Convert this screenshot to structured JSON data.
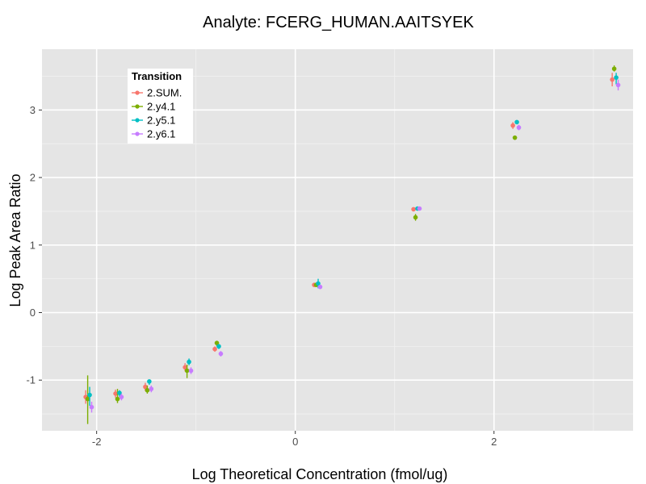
{
  "chart_data": {
    "type": "scatter",
    "title": "Analyte: FCERG_HUMAN.AAITSYEK",
    "xlabel": "Log Theoretical Concentration (fmol/ug)",
    "ylabel": "Log Peak Area Ratio",
    "xlim": [
      -2.55,
      3.4
    ],
    "ylim": [
      -1.75,
      3.9
    ],
    "x_ticks": [
      -2,
      0,
      2
    ],
    "y_ticks": [
      -1,
      0,
      1,
      2,
      3
    ],
    "x_tick_labels": [
      "-2",
      "0",
      "2"
    ],
    "y_tick_labels": [
      "-1",
      "0",
      "1",
      "2",
      "3"
    ],
    "grid": true,
    "legend": {
      "title": "Transition",
      "position": "top-left-inside"
    },
    "series": [
      {
        "name": "2.SUM.",
        "color": "#F8766D",
        "points": [
          {
            "x": -2.11,
            "y": -1.25,
            "lo": -1.35,
            "hi": -1.15
          },
          {
            "x": -1.81,
            "y": -1.2,
            "lo": -1.26,
            "hi": -1.14
          },
          {
            "x": -1.51,
            "y": -1.1,
            "lo": -1.16,
            "hi": -1.04
          },
          {
            "x": -1.11,
            "y": -0.81,
            "lo": -0.87,
            "hi": -0.75
          },
          {
            "x": -0.81,
            "y": -0.54,
            "lo": -0.58,
            "hi": -0.5
          },
          {
            "x": 0.19,
            "y": 0.41,
            "lo": 0.38,
            "hi": 0.44
          },
          {
            "x": 1.19,
            "y": 1.53,
            "lo": 1.51,
            "hi": 1.55
          },
          {
            "x": 2.19,
            "y": 2.77,
            "lo": 2.72,
            "hi": 2.82
          },
          {
            "x": 3.19,
            "y": 3.45,
            "lo": 3.35,
            "hi": 3.55
          }
        ]
      },
      {
        "name": "2.y4.1",
        "color": "#7CAE00",
        "points": [
          {
            "x": -2.09,
            "y": -1.28,
            "lo": -1.65,
            "hi": -0.93
          },
          {
            "x": -1.79,
            "y": -1.28,
            "lo": -1.34,
            "hi": -1.13
          },
          {
            "x": -1.49,
            "y": -1.15,
            "lo": -1.2,
            "hi": -1.08
          },
          {
            "x": -1.09,
            "y": -0.86,
            "lo": -0.97,
            "hi": -0.77
          },
          {
            "x": -0.79,
            "y": -0.45,
            "lo": -0.5,
            "hi": -0.42
          },
          {
            "x": 0.21,
            "y": 0.41,
            "lo": 0.38,
            "hi": 0.44
          },
          {
            "x": 1.21,
            "y": 1.41,
            "lo": 1.36,
            "hi": 1.46
          },
          {
            "x": 2.21,
            "y": 2.59,
            "lo": 2.56,
            "hi": 2.62
          },
          {
            "x": 3.21,
            "y": 3.61,
            "lo": 3.57,
            "hi": 3.66
          }
        ]
      },
      {
        "name": "2.y5.1",
        "color": "#00BFC4",
        "points": [
          {
            "x": -2.07,
            "y": -1.22,
            "lo": -1.38,
            "hi": -1.1
          },
          {
            "x": -1.77,
            "y": -1.19,
            "lo": -1.25,
            "hi": -1.15
          },
          {
            "x": -1.47,
            "y": -1.02,
            "lo": -1.07,
            "hi": -0.99
          },
          {
            "x": -1.07,
            "y": -0.73,
            "lo": -0.78,
            "hi": -0.68
          },
          {
            "x": -0.77,
            "y": -0.5,
            "lo": -0.54,
            "hi": -0.47
          },
          {
            "x": 0.23,
            "y": 0.43,
            "lo": 0.36,
            "hi": 0.5
          },
          {
            "x": 1.23,
            "y": 1.54,
            "lo": 1.52,
            "hi": 1.56
          },
          {
            "x": 2.23,
            "y": 2.82,
            "lo": 2.79,
            "hi": 2.85
          },
          {
            "x": 3.23,
            "y": 3.48,
            "lo": 3.38,
            "hi": 3.55
          }
        ]
      },
      {
        "name": "2.y6.1",
        "color": "#C77CFF",
        "points": [
          {
            "x": -2.05,
            "y": -1.4,
            "lo": -1.48,
            "hi": -1.32
          },
          {
            "x": -1.75,
            "y": -1.25,
            "lo": -1.3,
            "hi": -1.2
          },
          {
            "x": -1.45,
            "y": -1.13,
            "lo": -1.18,
            "hi": -1.08
          },
          {
            "x": -1.05,
            "y": -0.86,
            "lo": -0.91,
            "hi": -0.81
          },
          {
            "x": -0.75,
            "y": -0.61,
            "lo": -0.65,
            "hi": -0.57
          },
          {
            "x": 0.25,
            "y": 0.38,
            "lo": 0.35,
            "hi": 0.41
          },
          {
            "x": 1.25,
            "y": 1.54,
            "lo": 1.52,
            "hi": 1.56
          },
          {
            "x": 2.25,
            "y": 2.74,
            "lo": 2.7,
            "hi": 2.78
          },
          {
            "x": 3.25,
            "y": 3.37,
            "lo": 3.29,
            "hi": 3.45
          }
        ]
      }
    ]
  }
}
